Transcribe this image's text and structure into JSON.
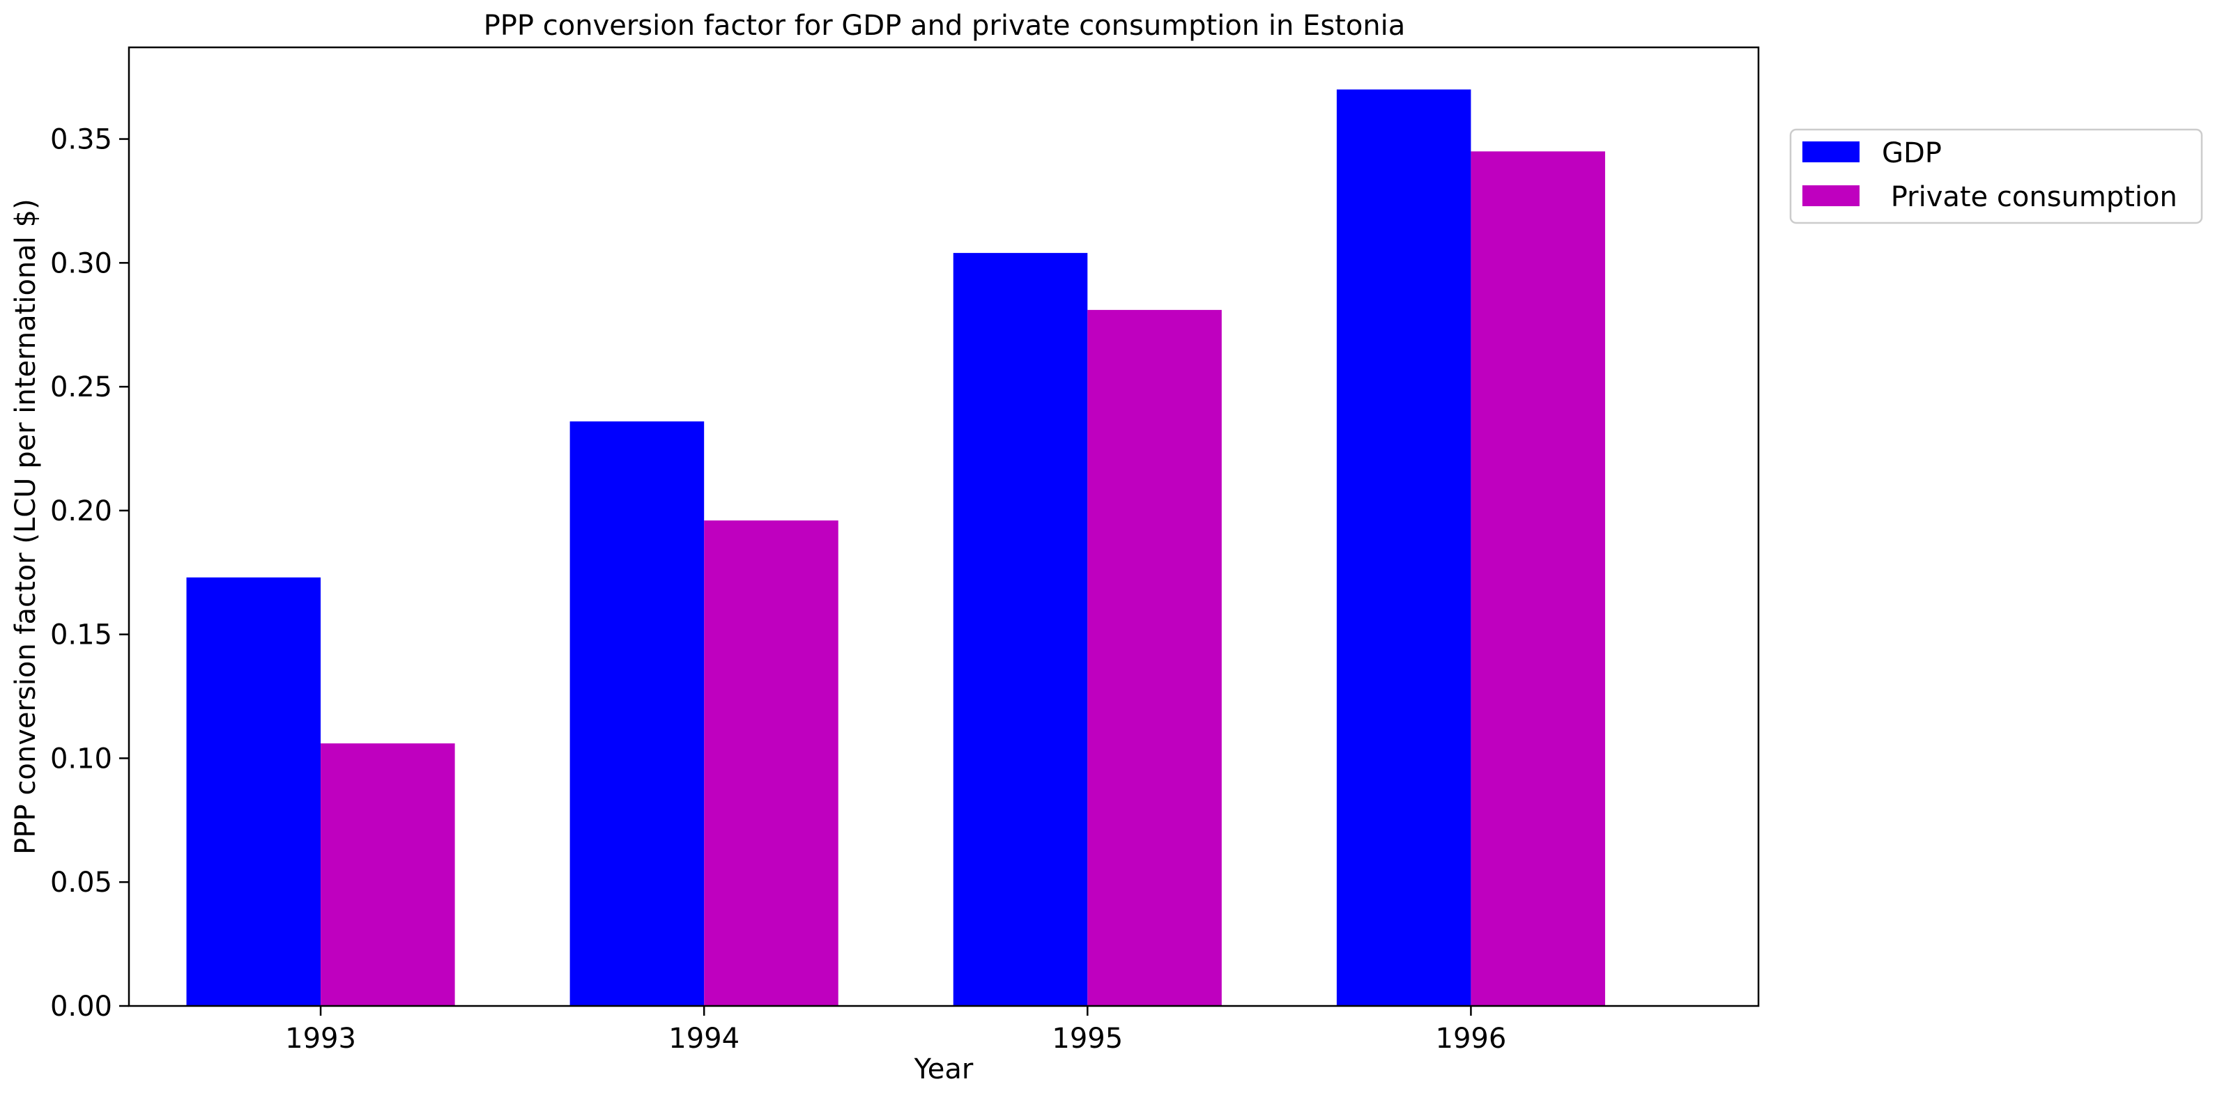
{
  "chart_data": {
    "type": "bar",
    "title": "PPP conversion factor for GDP and private consumption in Estonia",
    "xlabel": "Year",
    "ylabel": "PPP conversion factor (LCU per international $)",
    "categories": [
      "1993",
      "1994",
      "1995",
      "1996"
    ],
    "series": [
      {
        "name": "GDP",
        "color": "#0000ff",
        "values": [
          0.173,
          0.236,
          0.304,
          0.37
        ]
      },
      {
        "name": " Private consumption",
        "color": "#bf00bf",
        "values": [
          0.106,
          0.196,
          0.281,
          0.345
        ]
      }
    ],
    "ylim": [
      0,
      0.387
    ],
    "yticks": [
      0.0,
      0.05,
      0.1,
      0.15,
      0.2,
      0.25,
      0.3,
      0.35
    ],
    "ytick_labels": [
      "0.00",
      "0.05",
      "0.10",
      "0.15",
      "0.20",
      "0.25",
      "0.30",
      "0.35"
    ],
    "grid": false,
    "legend_position": "outside-right-top"
  }
}
